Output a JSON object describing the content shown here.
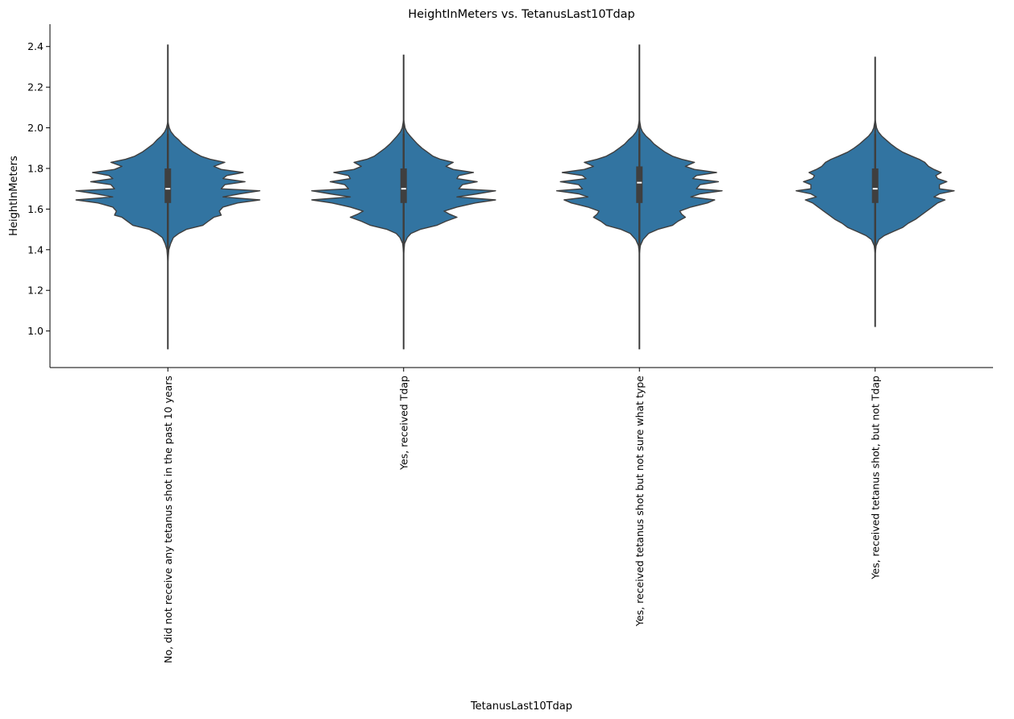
{
  "chart_data": {
    "type": "violin",
    "title": "HeightInMeters vs. TetanusLast10Tdap",
    "xlabel": "TetanusLast10Tdap",
    "ylabel": "HeightInMeters",
    "ylim": [
      0.82,
      2.51
    ],
    "yticks": [
      1.0,
      1.2,
      1.4,
      1.6,
      1.8,
      2.0,
      2.2,
      2.4
    ],
    "ytick_labels": [
      "1.0",
      "1.2",
      "1.4",
      "1.6",
      "1.8",
      "2.0",
      "2.2",
      "2.4"
    ],
    "grid": false,
    "color": "#3274a1",
    "edge_color": "#3f3f3f",
    "categories": [
      "No, did not receive any tetanus shot in the past 10 years",
      "Yes, received Tdap",
      "Yes, received tetanus shot but not sure what type",
      "Yes, received tetanus shot, but not Tdap"
    ],
    "violins": [
      {
        "min": 0.91,
        "max": 2.41,
        "q1": 1.63,
        "median": 1.7,
        "q3": 1.8,
        "whisker_low": 1.4,
        "whisker_high": 1.97,
        "profile": [
          [
            1.34,
            0.0
          ],
          [
            1.4,
            0.01
          ],
          [
            1.43,
            0.03
          ],
          [
            1.46,
            0.06
          ],
          [
            1.48,
            0.12
          ],
          [
            1.5,
            0.2
          ],
          [
            1.52,
            0.38
          ],
          [
            1.54,
            0.44
          ],
          [
            1.56,
            0.5
          ],
          [
            1.57,
            0.58
          ],
          [
            1.59,
            0.56
          ],
          [
            1.61,
            0.6
          ],
          [
            1.63,
            0.76
          ],
          [
            1.645,
            1.0
          ],
          [
            1.66,
            0.6
          ],
          [
            1.675,
            0.78
          ],
          [
            1.69,
            1.0
          ],
          [
            1.7,
            0.58
          ],
          [
            1.72,
            0.62
          ],
          [
            1.735,
            0.84
          ],
          [
            1.75,
            0.6
          ],
          [
            1.765,
            0.64
          ],
          [
            1.78,
            0.82
          ],
          [
            1.795,
            0.58
          ],
          [
            1.81,
            0.5
          ],
          [
            1.83,
            0.62
          ],
          [
            1.845,
            0.46
          ],
          [
            1.86,
            0.36
          ],
          [
            1.88,
            0.28
          ],
          [
            1.9,
            0.22
          ],
          [
            1.92,
            0.16
          ],
          [
            1.94,
            0.12
          ],
          [
            1.96,
            0.07
          ],
          [
            1.98,
            0.035
          ],
          [
            2.0,
            0.015
          ],
          [
            2.03,
            0.0
          ]
        ]
      },
      {
        "min": 0.91,
        "max": 2.36,
        "q1": 1.63,
        "median": 1.7,
        "q3": 1.8,
        "whisker_low": 1.43,
        "whisker_high": 1.97,
        "profile": [
          [
            1.38,
            0.0
          ],
          [
            1.43,
            0.01
          ],
          [
            1.46,
            0.04
          ],
          [
            1.48,
            0.08
          ],
          [
            1.5,
            0.18
          ],
          [
            1.52,
            0.36
          ],
          [
            1.54,
            0.46
          ],
          [
            1.56,
            0.58
          ],
          [
            1.575,
            0.5
          ],
          [
            1.59,
            0.44
          ],
          [
            1.61,
            0.58
          ],
          [
            1.63,
            0.78
          ],
          [
            1.645,
            1.0
          ],
          [
            1.66,
            0.58
          ],
          [
            1.675,
            0.8
          ],
          [
            1.69,
            1.0
          ],
          [
            1.7,
            0.6
          ],
          [
            1.72,
            0.64
          ],
          [
            1.735,
            0.8
          ],
          [
            1.75,
            0.58
          ],
          [
            1.765,
            0.6
          ],
          [
            1.78,
            0.76
          ],
          [
            1.795,
            0.54
          ],
          [
            1.81,
            0.46
          ],
          [
            1.83,
            0.54
          ],
          [
            1.845,
            0.4
          ],
          [
            1.86,
            0.32
          ],
          [
            1.88,
            0.26
          ],
          [
            1.9,
            0.2
          ],
          [
            1.92,
            0.15
          ],
          [
            1.94,
            0.11
          ],
          [
            1.96,
            0.07
          ],
          [
            1.98,
            0.035
          ],
          [
            2.0,
            0.015
          ],
          [
            2.04,
            0.0
          ]
        ]
      },
      {
        "min": 0.91,
        "max": 2.41,
        "q1": 1.63,
        "median": 1.73,
        "q3": 1.81,
        "whisker_low": 1.4,
        "whisker_high": 1.97,
        "profile": [
          [
            1.38,
            0.0
          ],
          [
            1.42,
            0.01
          ],
          [
            1.45,
            0.04
          ],
          [
            1.48,
            0.1
          ],
          [
            1.5,
            0.2
          ],
          [
            1.52,
            0.36
          ],
          [
            1.54,
            0.42
          ],
          [
            1.56,
            0.5
          ],
          [
            1.575,
            0.46
          ],
          [
            1.59,
            0.44
          ],
          [
            1.61,
            0.56
          ],
          [
            1.63,
            0.74
          ],
          [
            1.645,
            0.82
          ],
          [
            1.66,
            0.56
          ],
          [
            1.675,
            0.66
          ],
          [
            1.69,
            0.9
          ],
          [
            1.7,
            0.62
          ],
          [
            1.72,
            0.66
          ],
          [
            1.735,
            0.86
          ],
          [
            1.75,
            0.58
          ],
          [
            1.765,
            0.62
          ],
          [
            1.78,
            0.84
          ],
          [
            1.795,
            0.6
          ],
          [
            1.81,
            0.5
          ],
          [
            1.83,
            0.6
          ],
          [
            1.845,
            0.46
          ],
          [
            1.86,
            0.36
          ],
          [
            1.88,
            0.28
          ],
          [
            1.9,
            0.22
          ],
          [
            1.92,
            0.16
          ],
          [
            1.94,
            0.12
          ],
          [
            1.96,
            0.07
          ],
          [
            1.98,
            0.035
          ],
          [
            2.0,
            0.015
          ],
          [
            2.04,
            0.0
          ]
        ]
      },
      {
        "min": 1.02,
        "max": 2.35,
        "q1": 1.63,
        "median": 1.7,
        "q3": 1.8,
        "whisker_low": 1.43,
        "whisker_high": 1.97,
        "profile": [
          [
            1.38,
            0.0
          ],
          [
            1.42,
            0.01
          ],
          [
            1.45,
            0.04
          ],
          [
            1.47,
            0.1
          ],
          [
            1.49,
            0.2
          ],
          [
            1.51,
            0.3
          ],
          [
            1.53,
            0.36
          ],
          [
            1.55,
            0.44
          ],
          [
            1.57,
            0.5
          ],
          [
            1.59,
            0.56
          ],
          [
            1.61,
            0.62
          ],
          [
            1.63,
            0.68
          ],
          [
            1.645,
            0.76
          ],
          [
            1.66,
            0.64
          ],
          [
            1.675,
            0.7
          ],
          [
            1.69,
            0.86
          ],
          [
            1.7,
            0.7
          ],
          [
            1.72,
            0.7
          ],
          [
            1.735,
            0.78
          ],
          [
            1.75,
            0.68
          ],
          [
            1.765,
            0.66
          ],
          [
            1.78,
            0.72
          ],
          [
            1.795,
            0.64
          ],
          [
            1.81,
            0.58
          ],
          [
            1.83,
            0.54
          ],
          [
            1.845,
            0.48
          ],
          [
            1.86,
            0.4
          ],
          [
            1.88,
            0.3
          ],
          [
            1.9,
            0.23
          ],
          [
            1.92,
            0.17
          ],
          [
            1.94,
            0.12
          ],
          [
            1.96,
            0.07
          ],
          [
            1.98,
            0.035
          ],
          [
            2.0,
            0.015
          ],
          [
            2.04,
            0.0
          ]
        ]
      }
    ]
  }
}
